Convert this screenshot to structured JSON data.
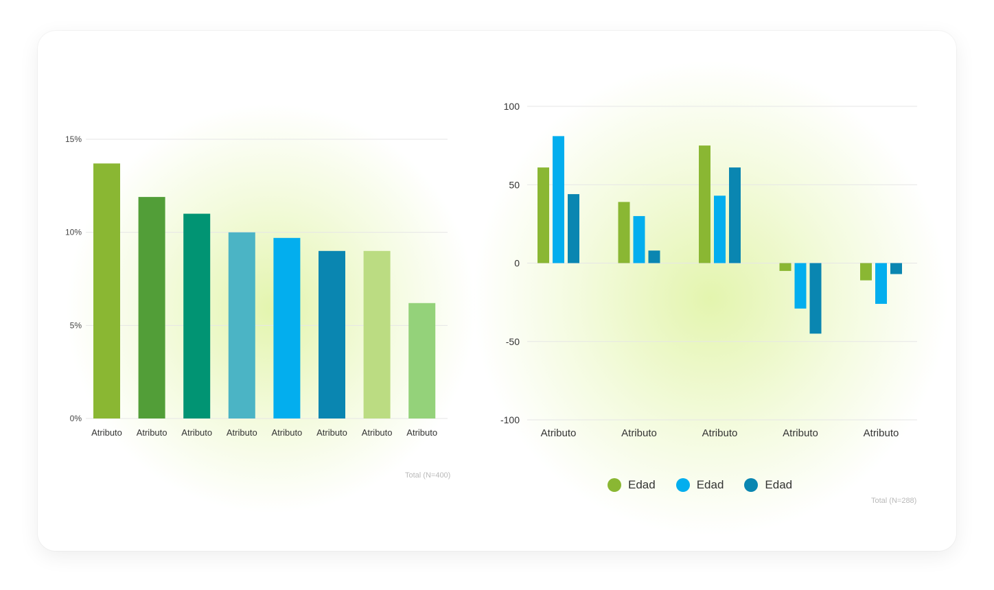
{
  "chart_data": [
    {
      "type": "bar",
      "categories": [
        "Atributo",
        "Atributo",
        "Atributo",
        "Atributo",
        "Atributo",
        "Atributo",
        "Atributo",
        "Atributo"
      ],
      "values": [
        13.7,
        11.9,
        11.0,
        10.0,
        9.7,
        9.0,
        9.0,
        6.2
      ],
      "colors": [
        "#8ab733",
        "#529e38",
        "#019473",
        "#4bb4c5",
        "#03aeee",
        "#0a86b1",
        "#bbdc82",
        "#94d27a"
      ],
      "yticks": [
        "0%",
        "5%",
        "10%",
        "15%"
      ],
      "ylim": [
        0,
        15
      ],
      "grid": true,
      "note": "Total (N=400)"
    },
    {
      "type": "bar",
      "categories": [
        "Atributo",
        "Atributo",
        "Atributo",
        "Atributo",
        "Atributo"
      ],
      "series": [
        {
          "name": "Edad",
          "color": "#8ab733",
          "values": [
            61,
            39,
            75,
            -5,
            -11
          ]
        },
        {
          "name": "Edad",
          "color": "#03aeee",
          "values": [
            81,
            30,
            43,
            -29,
            -26
          ]
        },
        {
          "name": "Edad",
          "color": "#0a86b1",
          "values": [
            44,
            8,
            61,
            -45,
            -7
          ]
        }
      ],
      "yticks": [
        "-100",
        "-50",
        "0",
        "50",
        "100"
      ],
      "ylim": [
        -100,
        100
      ],
      "grid": true,
      "legend_position": "bottom",
      "note": "Total (N=288)"
    }
  ]
}
